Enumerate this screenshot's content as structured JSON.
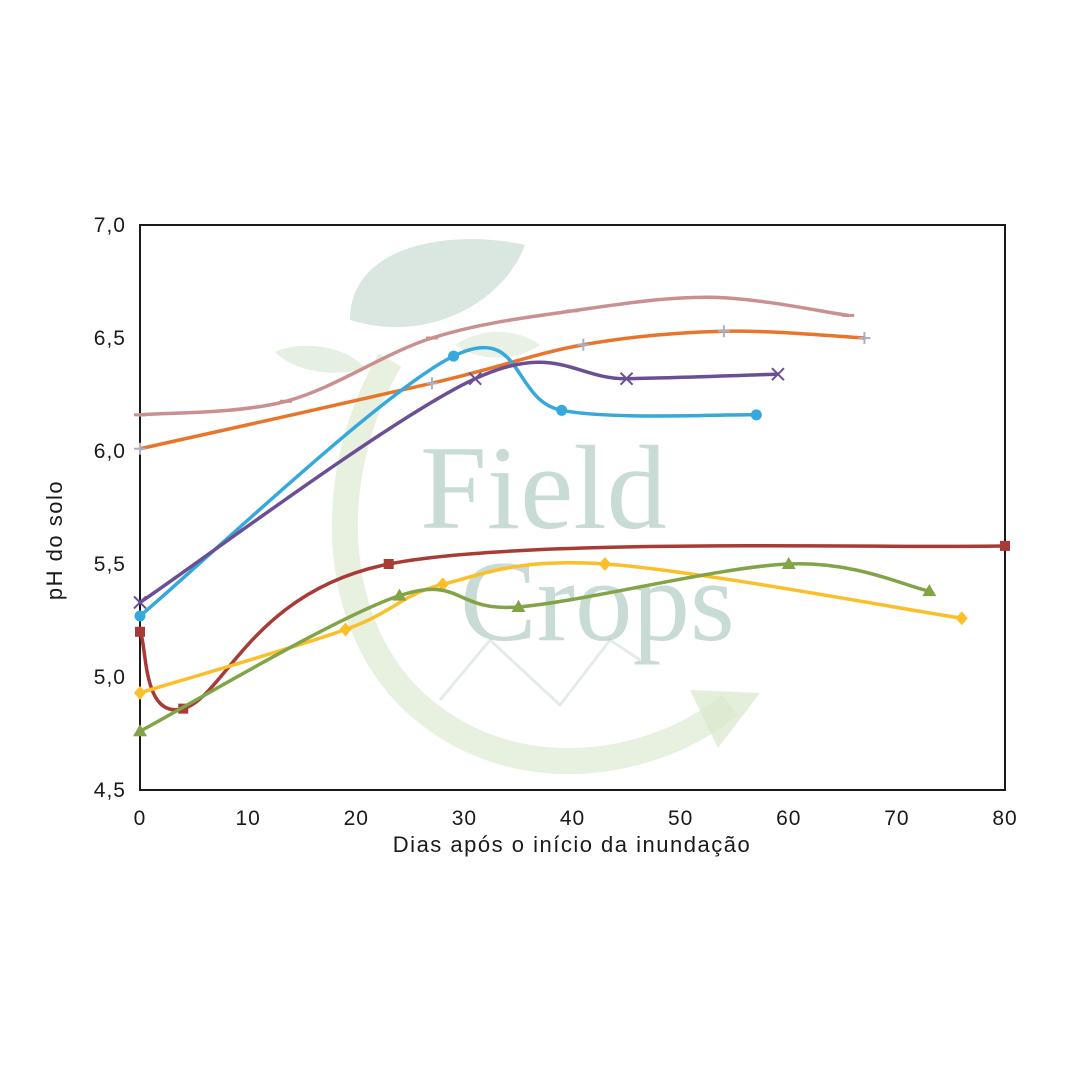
{
  "watermark": {
    "line1": "Field",
    "line2": "Crops"
  },
  "chart_data": {
    "type": "line",
    "xlabel": "Dias após o início da inundação",
    "ylabel": "pH do solo",
    "xlim": [
      0,
      80
    ],
    "ylim": [
      4.5,
      7.0
    ],
    "xticks": [
      "0",
      "10",
      "20",
      "30",
      "40",
      "50",
      "60",
      "70",
      "80"
    ],
    "yticks": [
      "4,5",
      "5,0",
      "5,5",
      "6,0",
      "6,5",
      "7,0"
    ],
    "grid": false,
    "legend": "none",
    "series": [
      {
        "color": "#c9908f",
        "marker": "dash",
        "x": [
          0,
          13.5,
          27,
          40,
          53,
          65.5
        ],
        "y": [
          6.16,
          6.22,
          6.5,
          6.62,
          6.68,
          6.6
        ]
      },
      {
        "color": "#e8752a",
        "marker": "plus",
        "x": [
          0,
          27,
          41,
          54,
          67
        ],
        "y": [
          6.01,
          6.3,
          6.47,
          6.53,
          6.5
        ]
      },
      {
        "color": "#35a9dc",
        "marker": "circle",
        "x": [
          0,
          29,
          39,
          57
        ],
        "y": [
          5.27,
          6.42,
          6.18,
          6.16
        ]
      },
      {
        "color": "#6b4f94",
        "marker": "cross",
        "x": [
          0,
          31,
          45,
          59
        ],
        "y": [
          5.33,
          6.32,
          6.32,
          6.34
        ]
      },
      {
        "color": "#a93b37",
        "marker": "square",
        "x": [
          0,
          4,
          23,
          80
        ],
        "y": [
          5.2,
          4.86,
          5.5,
          5.58
        ]
      },
      {
        "color": "#fbbf2a",
        "marker": "diamond",
        "x": [
          0,
          19,
          28,
          43,
          76
        ],
        "y": [
          4.93,
          5.21,
          5.41,
          5.5,
          5.26
        ]
      },
      {
        "color": "#80a446",
        "marker": "triangle",
        "x": [
          0,
          24,
          35,
          60,
          73
        ],
        "y": [
          4.76,
          5.36,
          5.31,
          5.5,
          5.38
        ]
      }
    ]
  }
}
